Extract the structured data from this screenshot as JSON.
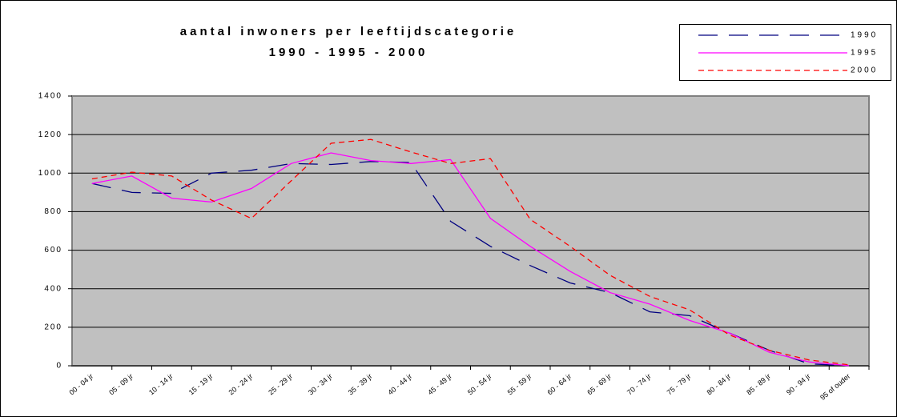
{
  "chart_data": {
    "type": "line",
    "title": [
      "aantal inwoners per leeftijdscategorie",
      "1990 - 1995 - 2000"
    ],
    "categories": [
      "00 - 04 jr",
      "05 - 09 jr",
      "10 - 14 jr",
      "15 - 19 jr",
      "20 - 24 jr",
      "25 - 29 jr",
      "30 - 34 jr",
      "35 - 39 jr",
      "40 - 44 jr",
      "45 - 49 jr",
      "50 - 54 jr",
      "55 - 59 jr",
      "60 - 64 jr",
      "65 - 69 jr",
      "70 - 74 jr",
      "75 - 79 jr",
      "80 - 84 jr",
      "85 - 89 jr",
      "90 - 94 jr",
      "95 of ouder"
    ],
    "series": [
      {
        "name": "1990",
        "color": "#000080",
        "values": [
          946,
          900,
          895,
          1000,
          1015,
          1050,
          1045,
          1060,
          1055,
          750,
          620,
          520,
          430,
          380,
          280,
          260,
          170,
          80,
          10,
          0
        ]
      },
      {
        "name": "1995",
        "color": "#ff00ff",
        "values": [
          946,
          985,
          870,
          850,
          920,
          1050,
          1105,
          1065,
          1050,
          1070,
          765,
          620,
          490,
          380,
          320,
          235,
          170,
          70,
          20,
          0
        ]
      },
      {
        "name": "2000",
        "color": "#ff0000",
        "values": [
          970,
          1005,
          985,
          860,
          765,
          960,
          1155,
          1175,
          1110,
          1050,
          1075,
          760,
          620,
          470,
          360,
          290,
          160,
          80,
          30,
          5
        ]
      }
    ],
    "ylim": [
      0,
      1400
    ],
    "yticks": [
      0,
      200,
      400,
      600,
      800,
      1000,
      1200,
      1400
    ],
    "grid": true,
    "legend": "top-right"
  }
}
